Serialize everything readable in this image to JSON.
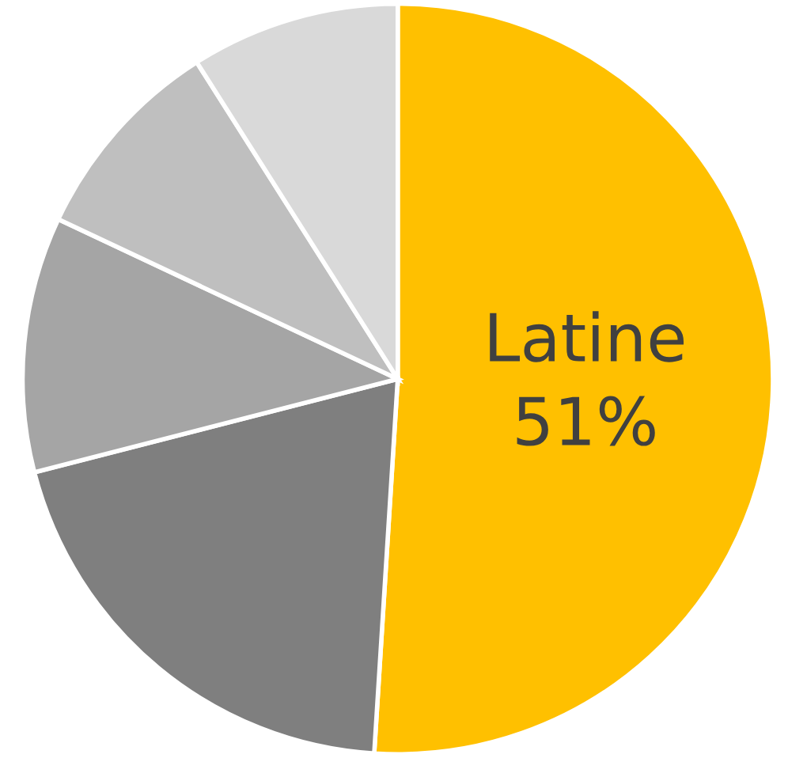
{
  "chart_data": {
    "type": "pie",
    "categories": [
      "Latine",
      null,
      null,
      null,
      null
    ],
    "values": [
      51,
      20,
      11,
      9,
      9
    ],
    "value_labels": [
      "51%",
      null,
      null,
      null,
      null
    ],
    "colors": [
      "#ffc000",
      "#7f7f7f",
      "#a5a5a5",
      "#bfbfbf",
      "#d9d9d9"
    ]
  }
}
